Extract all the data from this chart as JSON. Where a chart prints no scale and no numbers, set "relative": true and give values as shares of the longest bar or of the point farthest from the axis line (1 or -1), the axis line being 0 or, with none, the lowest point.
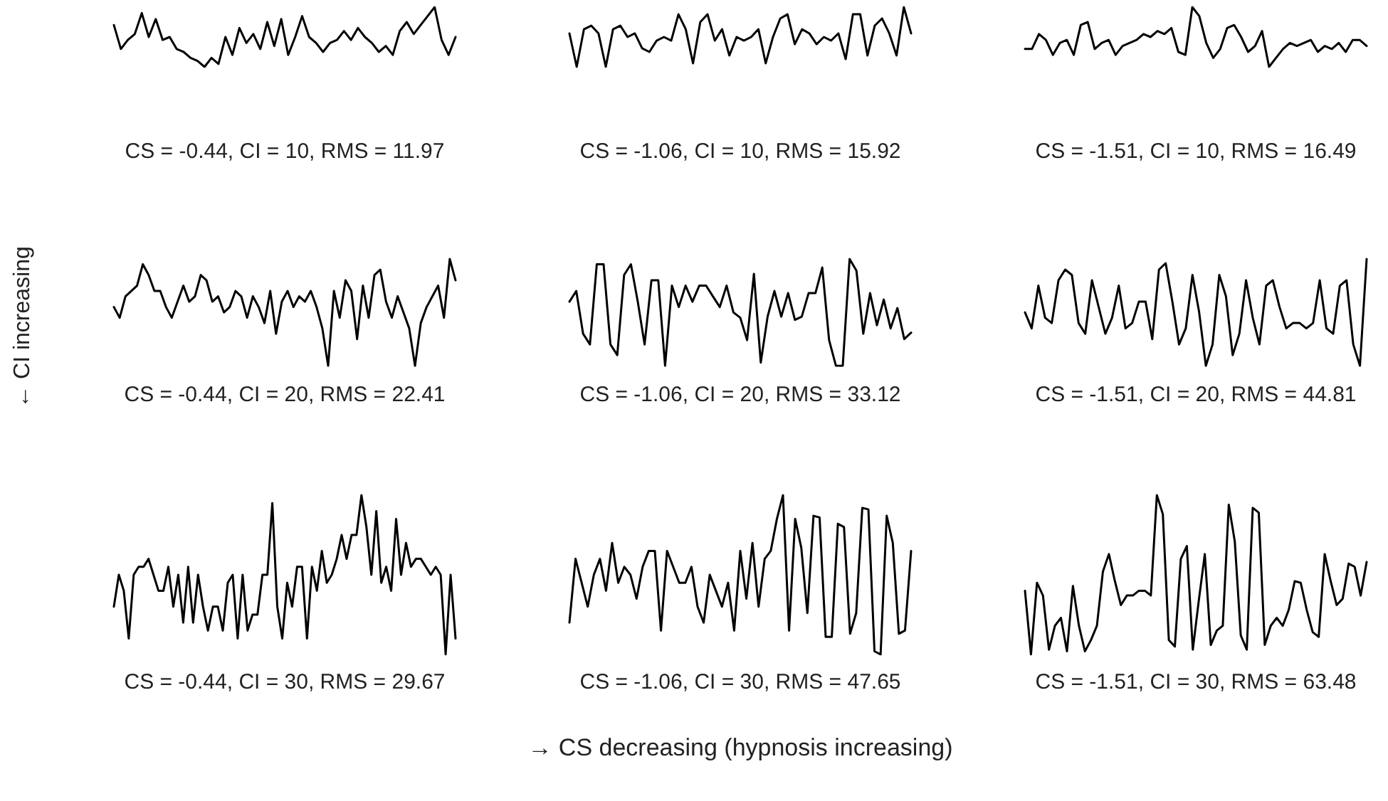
{
  "chart_data": [
    {
      "type": "line",
      "relative": true,
      "color": "#000000",
      "xlabel": "CS = -0.44, CI = 10, RMS = 11.97",
      "categories": [
        null,
        null,
        null,
        null,
        null,
        null,
        null,
        null,
        null,
        null,
        null,
        null,
        null,
        null,
        null,
        null,
        null,
        null,
        null,
        null,
        null,
        null,
        null,
        null,
        null,
        null,
        null,
        null,
        null,
        null,
        null,
        null,
        null,
        null,
        null,
        null,
        null,
        null,
        null,
        null,
        null,
        null,
        null,
        null,
        null,
        null,
        null,
        null,
        null,
        null
      ],
      "values": [
        0.7,
        0.3,
        0.45,
        0.55,
        0.9,
        0.5,
        0.8,
        0.45,
        0.5,
        0.3,
        0.25,
        0.15,
        0.1,
        0.0,
        0.15,
        0.05,
        0.5,
        0.2,
        0.65,
        0.4,
        0.55,
        0.3,
        0.75,
        0.35,
        0.8,
        0.2,
        0.5,
        0.85,
        0.5,
        0.4,
        0.25,
        0.4,
        0.45,
        0.6,
        0.45,
        0.65,
        0.5,
        0.4,
        0.25,
        0.35,
        0.2,
        0.6,
        0.75,
        0.55,
        0.7,
        0.85,
        1.0,
        0.45,
        0.2,
        0.5
      ]
    },
    {
      "type": "line",
      "relative": true,
      "color": "#000000",
      "xlabel": "CS = -1.06, CI = 10, RMS = 15.92",
      "categories": [
        null,
        null,
        null,
        null,
        null,
        null,
        null,
        null,
        null,
        null,
        null,
        null,
        null,
        null,
        null,
        null,
        null,
        null,
        null,
        null,
        null,
        null,
        null,
        null,
        null,
        null,
        null,
        null,
        null,
        null,
        null,
        null,
        null,
        null,
        null,
        null,
        null,
        null,
        null,
        null,
        null,
        null,
        null,
        null,
        null,
        null,
        null,
        null
      ],
      "values": [
        0.56,
        0.0,
        0.63,
        0.69,
        0.56,
        0.0,
        0.63,
        0.69,
        0.5,
        0.56,
        0.31,
        0.25,
        0.44,
        0.5,
        0.44,
        0.88,
        0.63,
        0.06,
        0.75,
        0.88,
        0.44,
        0.63,
        0.19,
        0.5,
        0.44,
        0.5,
        0.63,
        0.06,
        0.5,
        0.81,
        0.88,
        0.38,
        0.63,
        0.56,
        0.38,
        0.5,
        0.44,
        0.56,
        0.13,
        0.88,
        0.88,
        0.19,
        0.69,
        0.81,
        0.56,
        0.19,
        1.0,
        0.56
      ]
    },
    {
      "type": "line",
      "relative": true,
      "color": "#000000",
      "xlabel": "CS = -1.51, CI = 10, RMS = 16.49",
      "categories": [
        null,
        null,
        null,
        null,
        null,
        null,
        null,
        null,
        null,
        null,
        null,
        null,
        null,
        null,
        null,
        null,
        null,
        null,
        null,
        null,
        null,
        null,
        null,
        null,
        null,
        null,
        null,
        null,
        null,
        null,
        null,
        null,
        null,
        null,
        null,
        null,
        null,
        null,
        null,
        null,
        null,
        null,
        null,
        null,
        null,
        null,
        null,
        null,
        null,
        null
      ],
      "values": [
        0.3,
        0.3,
        0.55,
        0.45,
        0.2,
        0.4,
        0.45,
        0.2,
        0.7,
        0.75,
        0.3,
        0.4,
        0.45,
        0.2,
        0.35,
        0.4,
        0.45,
        0.55,
        0.5,
        0.6,
        0.55,
        0.65,
        0.25,
        0.2,
        1.0,
        0.85,
        0.4,
        0.15,
        0.3,
        0.65,
        0.7,
        0.5,
        0.25,
        0.35,
        0.6,
        0.0,
        0.15,
        0.3,
        0.4,
        0.35,
        0.4,
        0.45,
        0.25,
        0.35,
        0.3,
        0.4,
        0.25,
        0.45,
        0.45,
        0.35
      ]
    },
    {
      "type": "line",
      "relative": true,
      "color": "#000000",
      "xlabel": "CS = -0.44, CI = 20, RMS = 22.41",
      "ylabel": "← CI increasing",
      "categories": [
        null,
        null,
        null,
        null,
        null,
        null,
        null,
        null,
        null,
        null,
        null,
        null,
        null,
        null,
        null,
        null,
        null,
        null,
        null,
        null,
        null,
        null,
        null,
        null,
        null,
        null,
        null,
        null,
        null,
        null,
        null,
        null,
        null,
        null,
        null,
        null,
        null,
        null,
        null,
        null,
        null,
        null,
        null,
        null,
        null,
        null,
        null,
        null,
        null,
        null,
        null,
        null,
        null,
        null,
        null,
        null,
        null,
        null,
        null,
        null
      ],
      "values": [
        0.55,
        0.45,
        0.65,
        0.7,
        0.75,
        0.95,
        0.85,
        0.7,
        0.7,
        0.55,
        0.45,
        0.6,
        0.75,
        0.6,
        0.65,
        0.85,
        0.8,
        0.6,
        0.65,
        0.5,
        0.55,
        0.7,
        0.65,
        0.45,
        0.65,
        0.55,
        0.4,
        0.7,
        0.3,
        0.6,
        0.7,
        0.55,
        0.65,
        0.6,
        0.7,
        0.55,
        0.35,
        0.0,
        0.7,
        0.45,
        0.8,
        0.7,
        0.25,
        0.75,
        0.45,
        0.85,
        0.9,
        0.6,
        0.45,
        0.65,
        0.5,
        0.35,
        0.0,
        0.4,
        0.55,
        0.65,
        0.75,
        0.45,
        1.0,
        0.8
      ]
    },
    {
      "type": "line",
      "relative": true,
      "color": "#000000",
      "xlabel": "CS = -1.06, CI = 20, RMS = 33.12",
      "categories": [
        null,
        null,
        null,
        null,
        null,
        null,
        null,
        null,
        null,
        null,
        null,
        null,
        null,
        null,
        null,
        null,
        null,
        null,
        null,
        null,
        null,
        null,
        null,
        null,
        null,
        null,
        null,
        null,
        null,
        null,
        null,
        null,
        null,
        null,
        null,
        null,
        null,
        null,
        null,
        null,
        null,
        null,
        null,
        null,
        null,
        null,
        null,
        null,
        null,
        null,
        null
      ],
      "values": [
        0.6,
        0.7,
        0.3,
        0.2,
        0.95,
        0.95,
        0.2,
        0.1,
        0.85,
        0.95,
        0.6,
        0.2,
        0.8,
        0.8,
        0.0,
        0.75,
        0.55,
        0.75,
        0.6,
        0.75,
        0.75,
        0.65,
        0.55,
        0.75,
        0.5,
        0.45,
        0.24,
        0.86,
        0.03,
        0.46,
        0.7,
        0.46,
        0.68,
        0.43,
        0.46,
        0.68,
        0.68,
        0.92,
        0.24,
        0.0,
        0.0,
        1.0,
        0.89,
        0.3,
        0.68,
        0.38,
        0.62,
        0.35,
        0.54,
        0.25,
        0.31
      ]
    },
    {
      "type": "line",
      "relative": true,
      "color": "#000000",
      "xlabel": "CS = -1.51, CI = 20, RMS = 44.81",
      "categories": [
        null,
        null,
        null,
        null,
        null,
        null,
        null,
        null,
        null,
        null,
        null,
        null,
        null,
        null,
        null,
        null,
        null,
        null,
        null,
        null,
        null,
        null,
        null,
        null,
        null,
        null,
        null,
        null,
        null,
        null,
        null,
        null,
        null,
        null,
        null,
        null,
        null,
        null,
        null,
        null,
        null,
        null,
        null,
        null,
        null,
        null,
        null,
        null,
        null,
        null,
        null,
        null
      ],
      "values": [
        0.5,
        0.35,
        0.75,
        0.45,
        0.4,
        0.8,
        0.9,
        0.85,
        0.4,
        0.3,
        0.8,
        0.55,
        0.3,
        0.45,
        0.75,
        0.35,
        0.4,
        0.6,
        0.6,
        0.25,
        0.9,
        0.96,
        0.6,
        0.2,
        0.35,
        0.85,
        0.5,
        0.0,
        0.2,
        0.85,
        0.65,
        0.1,
        0.3,
        0.8,
        0.45,
        0.2,
        0.75,
        0.8,
        0.55,
        0.35,
        0.4,
        0.4,
        0.35,
        0.4,
        0.8,
        0.35,
        0.3,
        0.75,
        0.8,
        0.2,
        0.0,
        1.0
      ]
    },
    {
      "type": "line",
      "relative": true,
      "color": "#000000",
      "xlabel": "CS = -0.44, CI = 30, RMS = 29.67",
      "categories": [
        null,
        null,
        null,
        null,
        null,
        null,
        null,
        null,
        null,
        null,
        null,
        null,
        null,
        null,
        null,
        null,
        null,
        null,
        null,
        null,
        null,
        null,
        null,
        null,
        null,
        null,
        null,
        null,
        null,
        null,
        null,
        null,
        null,
        null,
        null,
        null,
        null,
        null,
        null,
        null,
        null,
        null,
        null,
        null,
        null,
        null,
        null,
        null,
        null,
        null,
        null,
        null,
        null,
        null,
        null,
        null,
        null,
        null,
        null,
        null,
        null,
        null,
        null,
        null,
        null,
        null,
        null,
        null,
        null,
        null
      ],
      "values": [
        0.3,
        0.5,
        0.4,
        0.1,
        0.5,
        0.55,
        0.55,
        0.6,
        0.5,
        0.4,
        0.4,
        0.55,
        0.3,
        0.5,
        0.2,
        0.55,
        0.2,
        0.5,
        0.3,
        0.15,
        0.3,
        0.3,
        0.15,
        0.45,
        0.5,
        0.1,
        0.5,
        0.15,
        0.25,
        0.25,
        0.5,
        0.5,
        0.95,
        0.3,
        0.1,
        0.45,
        0.3,
        0.55,
        0.55,
        0.1,
        0.55,
        0.4,
        0.65,
        0.45,
        0.5,
        0.6,
        0.75,
        0.6,
        0.75,
        0.75,
        1.0,
        0.8,
        0.5,
        0.9,
        0.45,
        0.55,
        0.4,
        0.85,
        0.5,
        0.7,
        0.55,
        0.6,
        0.6,
        0.55,
        0.5,
        0.55,
        0.5,
        0.0,
        0.5,
        0.1
      ]
    },
    {
      "type": "line",
      "relative": true,
      "color": "#000000",
      "xlabel": "CS = -1.06, CI = 30, RMS = 47.65",
      "annotations": [
        "→ CS decreasing (hypnosis increasing)"
      ],
      "categories": [
        null,
        null,
        null,
        null,
        null,
        null,
        null,
        null,
        null,
        null,
        null,
        null,
        null,
        null,
        null,
        null,
        null,
        null,
        null,
        null,
        null,
        null,
        null,
        null,
        null,
        null,
        null,
        null,
        null,
        null,
        null,
        null,
        null,
        null,
        null,
        null,
        null,
        null,
        null,
        null,
        null,
        null,
        null,
        null,
        null,
        null,
        null,
        null,
        null,
        null,
        null,
        null,
        null,
        null,
        null,
        null,
        null
      ],
      "values": [
        0.2,
        0.6,
        0.45,
        0.3,
        0.5,
        0.6,
        0.4,
        0.7,
        0.45,
        0.55,
        0.5,
        0.35,
        0.55,
        0.65,
        0.65,
        0.15,
        0.65,
        0.55,
        0.45,
        0.45,
        0.55,
        0.3,
        0.2,
        0.5,
        0.4,
        0.3,
        0.45,
        0.15,
        0.65,
        0.35,
        0.7,
        0.3,
        0.6,
        0.65,
        0.85,
        1.0,
        0.15,
        0.85,
        0.67,
        0.26,
        0.87,
        0.86,
        0.11,
        0.11,
        0.82,
        0.8,
        0.13,
        0.26,
        0.92,
        0.91,
        0.02,
        0.0,
        0.87,
        0.7,
        0.13,
        0.15,
        0.65
      ]
    },
    {
      "type": "line",
      "relative": true,
      "color": "#000000",
      "xlabel": "CS = -1.51, CI = 30, RMS = 63.48",
      "categories": [
        null,
        null,
        null,
        null,
        null,
        null,
        null,
        null,
        null,
        null,
        null,
        null,
        null,
        null,
        null,
        null,
        null,
        null,
        null,
        null,
        null,
        null,
        null,
        null,
        null,
        null,
        null,
        null,
        null,
        null,
        null,
        null,
        null,
        null,
        null,
        null,
        null,
        null,
        null,
        null,
        null,
        null,
        null,
        null,
        null,
        null,
        null,
        null,
        null,
        null,
        null,
        null,
        null,
        null,
        null,
        null,
        null,
        null
      ],
      "values": [
        0.4,
        0.0,
        0.45,
        0.37,
        0.03,
        0.18,
        0.23,
        0.02,
        0.43,
        0.18,
        0.02,
        0.09,
        0.18,
        0.52,
        0.63,
        0.46,
        0.31,
        0.37,
        0.37,
        0.4,
        0.4,
        0.37,
        1.0,
        0.88,
        0.09,
        0.05,
        0.6,
        0.68,
        0.03,
        0.34,
        0.63,
        0.06,
        0.15,
        0.18,
        0.94,
        0.71,
        0.12,
        0.03,
        0.92,
        0.89,
        0.06,
        0.18,
        0.23,
        0.18,
        0.28,
        0.46,
        0.45,
        0.28,
        0.14,
        0.11,
        0.63,
        0.46,
        0.31,
        0.35,
        0.57,
        0.55,
        0.37,
        0.58
      ]
    }
  ]
}
